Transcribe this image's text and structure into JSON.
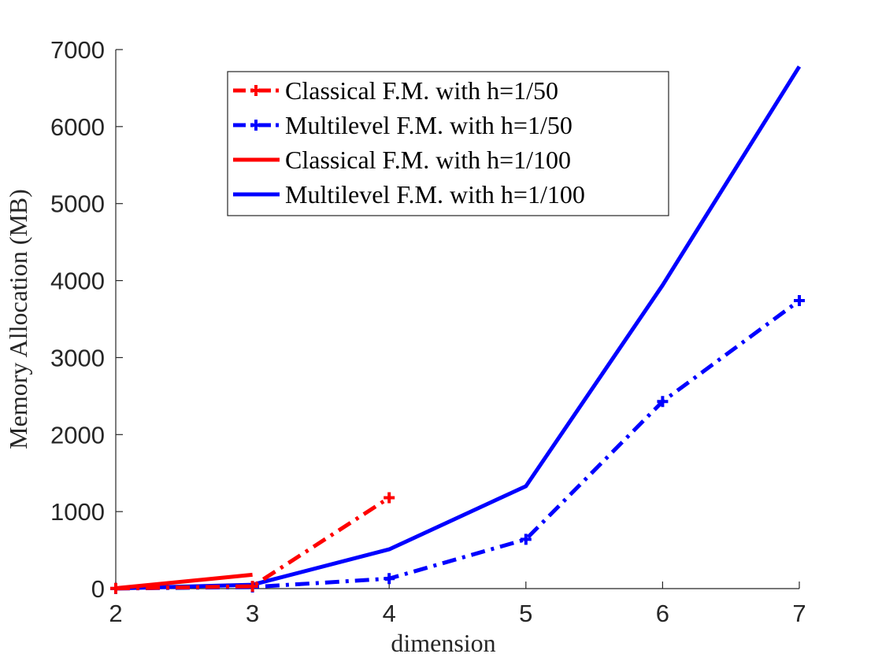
{
  "chart_data": {
    "type": "line",
    "title": "",
    "xlabel": "dimension",
    "ylabel": "Memory Allocation (MB)",
    "xlim": [
      2,
      7
    ],
    "ylim": [
      0,
      7000
    ],
    "xticks": [
      "2",
      "3",
      "4",
      "5",
      "6",
      "7"
    ],
    "yticks": [
      "0",
      "1000",
      "2000",
      "3000",
      "4000",
      "5000",
      "6000",
      "7000"
    ],
    "grid": false,
    "legend_position": "top-center",
    "series": [
      {
        "name": "Classical F.M. with h=1/50",
        "color": "#ff0000",
        "style": "dashdot",
        "marker": "plus",
        "x": [
          2,
          3,
          4
        ],
        "values": [
          2,
          30,
          1180
        ]
      },
      {
        "name": "Multilevel F.M. with h=1/50",
        "color": "#0000ff",
        "style": "dashdot",
        "marker": "plus",
        "x": [
          2,
          3,
          4,
          5,
          6,
          7
        ],
        "values": [
          1,
          20,
          130,
          640,
          2430,
          3740
        ]
      },
      {
        "name": "Classical F.M. with h=1/100",
        "color": "#ff0000",
        "style": "solid",
        "marker": "none",
        "x": [
          2,
          3
        ],
        "values": [
          5,
          180
        ]
      },
      {
        "name": "Multilevel F.M. with h=1/100",
        "color": "#0000ff",
        "style": "solid",
        "marker": "none",
        "x": [
          2,
          3,
          4,
          5,
          6,
          7
        ],
        "values": [
          2,
          50,
          510,
          1330,
          3940,
          6780
        ]
      }
    ]
  }
}
